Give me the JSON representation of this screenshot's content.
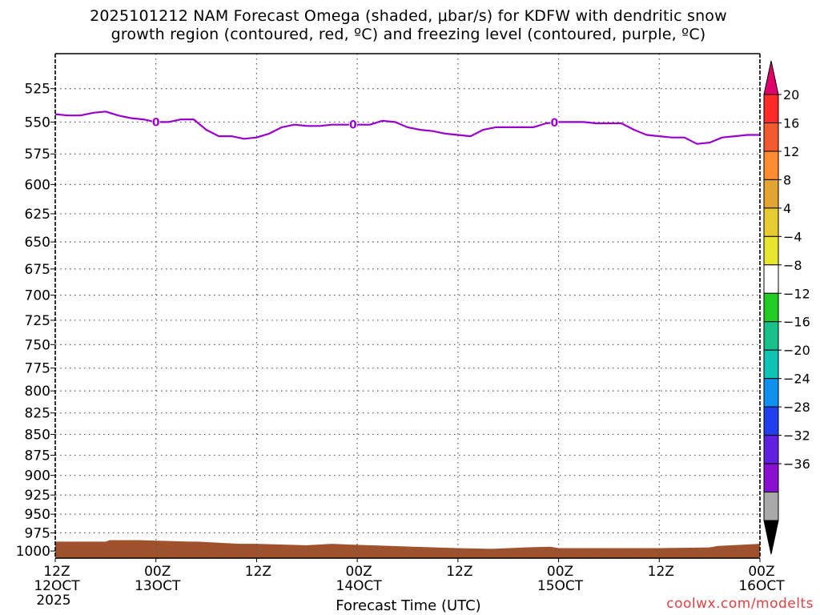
{
  "title": {
    "line1": "2025101212 NAM Forecast Omega (shaded, μbar/s) for KDFW with dendritic snow",
    "line2": "growth region (contoured, red, ºC) and freezing level (contoured, purple, ºC)"
  },
  "footer": {
    "xlabel": "Forecast Time (UTC)",
    "credit": "coolwx.com/modelts"
  },
  "colors": {
    "freezing_level": "#9900cc",
    "terrain": "#a0522d",
    "grid": "#555555"
  },
  "chart_data": {
    "type": "time-height cross section",
    "y_axis": {
      "label": "",
      "units": "hPa",
      "ticks": [
        525,
        550,
        575,
        600,
        625,
        650,
        675,
        700,
        725,
        750,
        775,
        800,
        825,
        850,
        875,
        900,
        925,
        950,
        975,
        1000
      ],
      "range": [
        1010,
        500
      ],
      "scale": "log-pressure"
    },
    "x_axis": {
      "label": "Forecast Time (UTC)",
      "ticks": [
        {
          "hour": 0,
          "line1": "12Z",
          "line2": "12OCT",
          "line3": "2025"
        },
        {
          "hour": 12,
          "line1": "00Z",
          "line2": "13OCT",
          "line3": ""
        },
        {
          "hour": 24,
          "line1": "12Z",
          "line2": "",
          "line3": ""
        },
        {
          "hour": 36,
          "line1": "00Z",
          "line2": "14OCT",
          "line3": ""
        },
        {
          "hour": 48,
          "line1": "12Z",
          "line2": "",
          "line3": ""
        },
        {
          "hour": 60,
          "line1": "00Z",
          "line2": "15OCT",
          "line3": ""
        },
        {
          "hour": 72,
          "line1": "12Z",
          "line2": "",
          "line3": ""
        },
        {
          "hour": 84,
          "line1": "00Z",
          "line2": "16OCT",
          "line3": ""
        }
      ],
      "range": [
        0,
        84
      ]
    },
    "grid": true,
    "freezing_level": {
      "label": "0",
      "label_hours": [
        12,
        35.5,
        59.5
      ],
      "hours": [
        0,
        1.5,
        3,
        4.5,
        6,
        7.5,
        9,
        10.5,
        12,
        13.5,
        15,
        16.5,
        18,
        19.5,
        21,
        22.5,
        24,
        25.5,
        27,
        28.5,
        30,
        31.5,
        33,
        34.5,
        36,
        37.5,
        39,
        40.5,
        42,
        43.5,
        45,
        46.5,
        48,
        49.5,
        51,
        52.5,
        54,
        55.5,
        57,
        58.5,
        60,
        61.5,
        63,
        64.5,
        66,
        67.5,
        69,
        70.5,
        72,
        73.5,
        75,
        76.5,
        78,
        79.5,
        81,
        82.5,
        84
      ],
      "pressure": [
        544,
        545,
        545,
        543,
        542,
        545,
        547,
        548,
        550,
        550,
        548,
        548,
        556,
        561,
        561,
        563,
        562,
        559,
        554,
        552,
        553,
        553,
        552,
        552,
        552,
        552,
        549,
        550,
        554,
        556,
        557,
        559,
        560,
        561,
        556,
        554,
        554,
        554,
        554,
        551,
        550,
        550,
        550,
        551,
        551,
        551,
        556,
        560,
        561,
        562,
        562,
        567,
        566,
        562,
        561,
        560,
        560
      ]
    },
    "terrain_surface": {
      "units": "hPa",
      "hours": [
        0,
        6,
        6.5,
        10,
        16,
        17,
        22,
        24,
        30,
        33,
        35,
        40,
        48,
        52,
        56,
        59,
        60,
        66,
        72,
        78,
        79,
        84
      ],
      "pressure": [
        987,
        987,
        985,
        985,
        987,
        987,
        990,
        990,
        992,
        990,
        991,
        993,
        996,
        997,
        995,
        994,
        996,
        996,
        996,
        995,
        993,
        990
      ]
    },
    "colorbar": {
      "labels": [
        "20",
        "16",
        "12",
        "8",
        "4",
        "-4",
        "-8",
        "-12",
        "-16",
        "-20",
        "-24",
        "-28",
        "-32",
        "-36"
      ],
      "colors": [
        "#e0006a",
        "#ff2a2a",
        "#f25a30",
        "#ff8c30",
        "#e4a430",
        "#e6cc30",
        "#e6e630",
        "#ffffff",
        "#22cc22",
        "#19c08a",
        "#10c4b4",
        "#1090ee",
        "#2040ee",
        "#6020e0",
        "#8a10d0",
        "#a8a8a8",
        "#000000"
      ]
    }
  }
}
